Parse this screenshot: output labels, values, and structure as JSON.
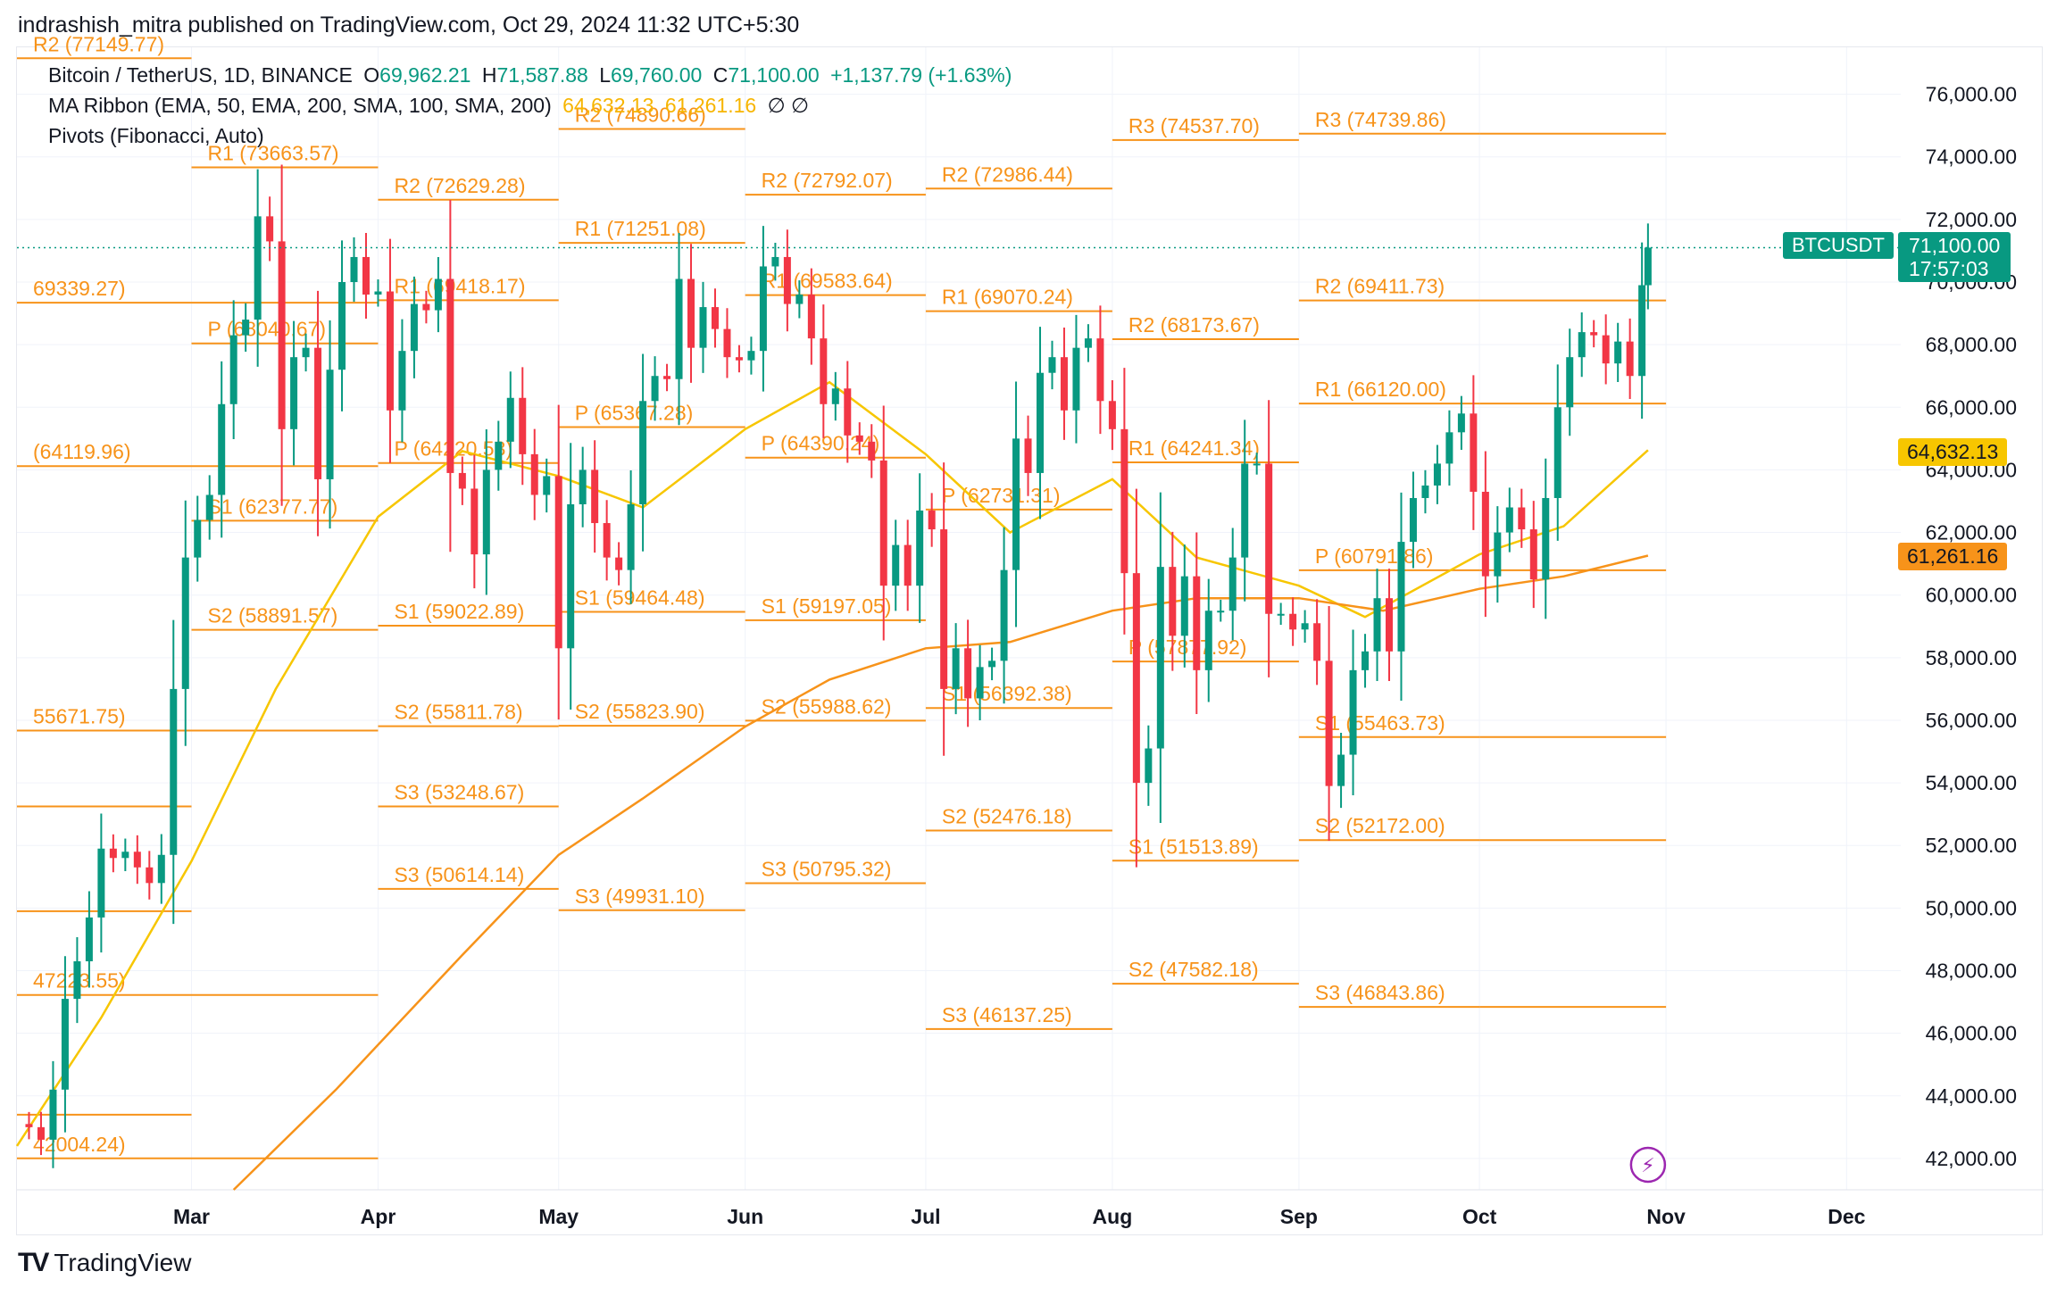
{
  "header": {
    "published": "indrashish_mitra published on TradingView.com, Oct 29, 2024 11:32 UTC+5:30"
  },
  "legend": {
    "symbol": "Bitcoin / TetherUS, 1D, BINANCE",
    "o_label": "O",
    "o_value": "69,962.21",
    "h_label": "H",
    "h_value": "71,587.88",
    "l_label": "L",
    "l_value": "69,760.00",
    "c_label": "C",
    "c_value": "71,100.00",
    "change": "+1,137.79 (+1.63%)",
    "ma_title": "MA Ribbon (EMA, 50, EMA, 200, SMA, 100, SMA, 200)",
    "ma_val1": "64,632.13",
    "ma_val2": "61,261.16",
    "ma_empty": "∅ ∅",
    "pivots_title": "Pivots (Fibonacci, Auto)"
  },
  "footer": {
    "brand": "TradingView",
    "logo": "TV"
  },
  "colors": {
    "up": "#089981",
    "down": "#f23645",
    "pivot": "#f7931a",
    "ema50": "#f7c600",
    "ema200": "#f7931a",
    "grid": "#f0f3fa",
    "tag": "#089981"
  },
  "price_tags": {
    "symbol": "BTCUSDT",
    "last": "71,100.00",
    "countdown": "17:57:03",
    "ema50": "64,632.13",
    "ema200": "61,261.16"
  },
  "chart_data": {
    "type": "candlestick",
    "x_range": [
      "2024-02-01",
      "2024-12-10"
    ],
    "ylim": [
      41000,
      77500
    ],
    "y_ticks": [
      42000,
      44000,
      46000,
      48000,
      50000,
      52000,
      54000,
      56000,
      58000,
      60000,
      62000,
      64000,
      66000,
      68000,
      70000,
      72000,
      74000,
      76000
    ],
    "y_tick_labels": [
      "42,000.00",
      "44,000.00",
      "46,000.00",
      "48,000.00",
      "50,000.00",
      "52,000.00",
      "54,000.00",
      "56,000.00",
      "58,000.00",
      "60,000.00",
      "62,000.00",
      "64,000.00",
      "66,000.00",
      "68,000.00",
      "70,000.00",
      "72,000.00",
      "74,000.00",
      "76,000.00"
    ],
    "x_ticks": [
      {
        "date": "2024-03-01",
        "label": "Mar"
      },
      {
        "date": "2024-04-01",
        "label": "Apr"
      },
      {
        "date": "2024-05-01",
        "label": "May"
      },
      {
        "date": "2024-06-01",
        "label": "Jun"
      },
      {
        "date": "2024-07-01",
        "label": "Jul"
      },
      {
        "date": "2024-08-01",
        "label": "Aug"
      },
      {
        "date": "2024-09-01",
        "label": "Sep"
      },
      {
        "date": "2024-10-01",
        "label": "Oct"
      },
      {
        "date": "2024-11-01",
        "label": "Nov"
      },
      {
        "date": "2024-12-01",
        "label": "Dec"
      }
    ],
    "last_price": 71100,
    "closes": [
      [
        "2024-02-01",
        43100
      ],
      [
        "2024-02-03",
        43000
      ],
      [
        "2024-02-05",
        42600
      ],
      [
        "2024-02-07",
        44200
      ],
      [
        "2024-02-09",
        47100
      ],
      [
        "2024-02-11",
        48300
      ],
      [
        "2024-02-13",
        49700
      ],
      [
        "2024-02-15",
        51900
      ],
      [
        "2024-02-17",
        51600
      ],
      [
        "2024-02-19",
        51800
      ],
      [
        "2024-02-21",
        51300
      ],
      [
        "2024-02-23",
        50800
      ],
      [
        "2024-02-25",
        51700
      ],
      [
        "2024-02-27",
        57000
      ],
      [
        "2024-02-29",
        61200
      ],
      [
        "2024-03-02",
        62400
      ],
      [
        "2024-03-04",
        63200
      ],
      [
        "2024-03-06",
        66100
      ],
      [
        "2024-03-08",
        68300
      ],
      [
        "2024-03-10",
        68800
      ],
      [
        "2024-03-12",
        72100
      ],
      [
        "2024-03-14",
        71300
      ],
      [
        "2024-03-16",
        65300
      ],
      [
        "2024-03-18",
        67600
      ],
      [
        "2024-03-20",
        67900
      ],
      [
        "2024-03-22",
        63700
      ],
      [
        "2024-03-24",
        67200
      ],
      [
        "2024-03-26",
        70000
      ],
      [
        "2024-03-28",
        70800
      ],
      [
        "2024-03-30",
        69600
      ],
      [
        "2024-04-01",
        69700
      ],
      [
        "2024-04-03",
        65900
      ],
      [
        "2024-04-05",
        67800
      ],
      [
        "2024-04-07",
        69300
      ],
      [
        "2024-04-09",
        69100
      ],
      [
        "2024-04-11",
        70100
      ],
      [
        "2024-04-13",
        63900
      ],
      [
        "2024-04-15",
        63400
      ],
      [
        "2024-04-17",
        61300
      ],
      [
        "2024-04-19",
        64000
      ],
      [
        "2024-04-21",
        64900
      ],
      [
        "2024-04-23",
        66300
      ],
      [
        "2024-04-25",
        64500
      ],
      [
        "2024-04-27",
        63200
      ],
      [
        "2024-04-29",
        63800
      ],
      [
        "2024-05-01",
        58300
      ],
      [
        "2024-05-03",
        62900
      ],
      [
        "2024-05-05",
        64000
      ],
      [
        "2024-05-07",
        62300
      ],
      [
        "2024-05-09",
        61200
      ],
      [
        "2024-05-11",
        60800
      ],
      [
        "2024-05-13",
        62900
      ],
      [
        "2024-05-15",
        66200
      ],
      [
        "2024-05-17",
        67000
      ],
      [
        "2024-05-19",
        66900
      ],
      [
        "2024-05-21",
        70100
      ],
      [
        "2024-05-23",
        67900
      ],
      [
        "2024-05-25",
        69200
      ],
      [
        "2024-05-27",
        68500
      ],
      [
        "2024-05-29",
        67600
      ],
      [
        "2024-05-31",
        67500
      ],
      [
        "2024-06-02",
        67800
      ],
      [
        "2024-06-04",
        70500
      ],
      [
        "2024-06-06",
        70800
      ],
      [
        "2024-06-08",
        69300
      ],
      [
        "2024-06-10",
        69600
      ],
      [
        "2024-06-12",
        68200
      ],
      [
        "2024-06-14",
        66100
      ],
      [
        "2024-06-16",
        66600
      ],
      [
        "2024-06-18",
        65100
      ],
      [
        "2024-06-20",
        64900
      ],
      [
        "2024-06-22",
        64300
      ],
      [
        "2024-06-24",
        60300
      ],
      [
        "2024-06-26",
        61600
      ],
      [
        "2024-06-28",
        60300
      ],
      [
        "2024-06-30",
        62700
      ],
      [
        "2024-07-02",
        62100
      ],
      [
        "2024-07-04",
        57000
      ],
      [
        "2024-07-06",
        58300
      ],
      [
        "2024-07-08",
        56700
      ],
      [
        "2024-07-10",
        57700
      ],
      [
        "2024-07-12",
        57900
      ],
      [
        "2024-07-14",
        60800
      ],
      [
        "2024-07-16",
        65000
      ],
      [
        "2024-07-18",
        63900
      ],
      [
        "2024-07-20",
        67100
      ],
      [
        "2024-07-22",
        67600
      ],
      [
        "2024-07-24",
        65900
      ],
      [
        "2024-07-26",
        67900
      ],
      [
        "2024-07-28",
        68200
      ],
      [
        "2024-07-30",
        66200
      ],
      [
        "2024-08-01",
        65300
      ],
      [
        "2024-08-03",
        60700
      ],
      [
        "2024-08-05",
        54000
      ],
      [
        "2024-08-07",
        55100
      ],
      [
        "2024-08-09",
        60900
      ],
      [
        "2024-08-11",
        58700
      ],
      [
        "2024-08-13",
        60600
      ],
      [
        "2024-08-15",
        57600
      ],
      [
        "2024-08-17",
        59500
      ],
      [
        "2024-08-19",
        59500
      ],
      [
        "2024-08-21",
        61200
      ],
      [
        "2024-08-23",
        64200
      ],
      [
        "2024-08-25",
        64200
      ],
      [
        "2024-08-27",
        59400
      ],
      [
        "2024-08-29",
        59400
      ],
      [
        "2024-08-31",
        58900
      ],
      [
        "2024-09-02",
        59100
      ],
      [
        "2024-09-04",
        57900
      ],
      [
        "2024-09-06",
        53900
      ],
      [
        "2024-09-08",
        54900
      ],
      [
        "2024-09-10",
        57600
      ],
      [
        "2024-09-12",
        58200
      ],
      [
        "2024-09-14",
        59900
      ],
      [
        "2024-09-16",
        58200
      ],
      [
        "2024-09-18",
        61700
      ],
      [
        "2024-09-20",
        63100
      ],
      [
        "2024-09-22",
        63500
      ],
      [
        "2024-09-24",
        64200
      ],
      [
        "2024-09-26",
        65200
      ],
      [
        "2024-09-28",
        65800
      ],
      [
        "2024-09-30",
        63300
      ],
      [
        "2024-10-02",
        60600
      ],
      [
        "2024-10-04",
        62000
      ],
      [
        "2024-10-06",
        62800
      ],
      [
        "2024-10-08",
        62100
      ],
      [
        "2024-10-10",
        60500
      ],
      [
        "2024-10-12",
        63100
      ],
      [
        "2024-10-14",
        66000
      ],
      [
        "2024-10-16",
        67600
      ],
      [
        "2024-10-18",
        68400
      ],
      [
        "2024-10-20",
        68300
      ],
      [
        "2024-10-22",
        67400
      ],
      [
        "2024-10-24",
        68100
      ],
      [
        "2024-10-26",
        67000
      ],
      [
        "2024-10-28",
        69900
      ],
      [
        "2024-10-29",
        71100
      ]
    ],
    "ema50": [
      [
        "2024-02-01",
        42400
      ],
      [
        "2024-02-15",
        46500
      ],
      [
        "2024-03-01",
        51500
      ],
      [
        "2024-03-15",
        57000
      ],
      [
        "2024-04-01",
        62500
      ],
      [
        "2024-04-15",
        64600
      ],
      [
        "2024-05-01",
        63800
      ],
      [
        "2024-05-15",
        62800
      ],
      [
        "2024-06-01",
        65300
      ],
      [
        "2024-06-15",
        66800
      ],
      [
        "2024-07-01",
        64500
      ],
      [
        "2024-07-15",
        62000
      ],
      [
        "2024-08-01",
        63700
      ],
      [
        "2024-08-15",
        61200
      ],
      [
        "2024-09-01",
        60300
      ],
      [
        "2024-09-12",
        59300
      ],
      [
        "2024-10-01",
        61300
      ],
      [
        "2024-10-15",
        62200
      ],
      [
        "2024-10-29",
        64632
      ]
    ],
    "ema200": [
      [
        "2024-03-08",
        41000
      ],
      [
        "2024-03-25",
        44200
      ],
      [
        "2024-04-15",
        48500
      ],
      [
        "2024-05-01",
        51700
      ],
      [
        "2024-05-15",
        53500
      ],
      [
        "2024-06-01",
        55800
      ],
      [
        "2024-06-15",
        57300
      ],
      [
        "2024-07-01",
        58300
      ],
      [
        "2024-07-15",
        58500
      ],
      [
        "2024-08-01",
        59500
      ],
      [
        "2024-08-15",
        59900
      ],
      [
        "2024-09-01",
        59900
      ],
      [
        "2024-09-15",
        59500
      ],
      [
        "2024-10-01",
        60200
      ],
      [
        "2024-10-15",
        60600
      ],
      [
        "2024-10-29",
        61261
      ]
    ],
    "pivot_periods": [
      {
        "start": "2024-02-01",
        "end": "2024-03-01",
        "levels": [
          [
            "R2",
            77149.77
          ],
          [
            "",
            "69339.27"
          ],
          [
            "",
            "64119.96"
          ],
          [
            "",
            "55671.75"
          ],
          [
            "",
            "53248.67"
          ],
          [
            "",
            "49900"
          ],
          [
            "",
            "47223.55"
          ],
          [
            "",
            "43400"
          ],
          [
            "",
            "42004.24"
          ]
        ]
      }
    ],
    "pivot_levels": [
      {
        "start": "2024-02-01",
        "end": "2024-03-01",
        "lines": [
          {
            "label": "R2 (77149.77)",
            "value": 77149.77
          },
          {
            "label": "69339.27)",
            "value": 69339.27
          },
          {
            "label": "(64119.96)",
            "value": 64119.96
          },
          {
            "label": "55671.75)",
            "value": 55671.75
          },
          {
            "label": "",
            "value": 53248.67
          },
          {
            "label": "",
            "value": 49900
          },
          {
            "label": "47223.55)",
            "value": 47223.55
          },
          {
            "label": "",
            "value": 43400
          },
          {
            "label": "42004.24)",
            "value": 42004.24
          }
        ]
      },
      {
        "start": "2024-03-01",
        "end": "2024-04-01",
        "lines": [
          {
            "label": "R1 (73663.57)",
            "value": 73663.57
          },
          {
            "label": "",
            "value": 69339.27
          },
          {
            "label": "P (68040.67)",
            "value": 68040.67
          },
          {
            "label": "",
            "value": 64119.96
          },
          {
            "label": "S1 (62377.77)",
            "value": 62377.77
          },
          {
            "label": "S2 (58891.57)",
            "value": 58891.57
          },
          {
            "label": "",
            "value": 55671.75
          },
          {
            "label": "",
            "value": 47223.55
          },
          {
            "label": "",
            "value": 42004.24
          }
        ]
      },
      {
        "start": "2024-04-01",
        "end": "2024-05-01",
        "lines": [
          {
            "label": "R2 (72629.28)",
            "value": 72629.28
          },
          {
            "label": "R1 (69418.17)",
            "value": 69418.17
          },
          {
            "label": "P (64220.53)",
            "value": 64220.53
          },
          {
            "label": "S1 (59022.89)",
            "value": 59022.89
          },
          {
            "label": "S2 (55811.78)",
            "value": 55811.78
          },
          {
            "label": "S3 (53248.67)",
            "value": 53248.67
          },
          {
            "label": "S3 (50614.14)",
            "value": 50614.14
          }
        ]
      },
      {
        "start": "2024-05-01",
        "end": "2024-06-01",
        "lines": [
          {
            "label": "R2 (74890.66)",
            "value": 74890.66
          },
          {
            "label": "R1 (71251.08)",
            "value": 71251.08
          },
          {
            "label": "P (65367.28)",
            "value": 65367.28
          },
          {
            "label": "S1 (59464.48)",
            "value": 59464.48
          },
          {
            "label": "S2 (55823.90)",
            "value": 55823.9
          },
          {
            "label": "S3 (49931.10)",
            "value": 49931.1
          }
        ]
      },
      {
        "start": "2024-06-01",
        "end": "2024-07-01",
        "lines": [
          {
            "label": "R2 (72792.07)",
            "value": 72792.07
          },
          {
            "label": "R1 (69583.64)",
            "value": 69583.64
          },
          {
            "label": "P (64390.24)",
            "value": 64390.24
          },
          {
            "label": "S1 (59197.05)",
            "value": 59197.05
          },
          {
            "label": "S2 (55988.62)",
            "value": 55988.62
          },
          {
            "label": "S3 (50795.32)",
            "value": 50795.32
          }
        ]
      },
      {
        "start": "2024-07-01",
        "end": "2024-08-01",
        "lines": [
          {
            "label": "R2 (72986.44)",
            "value": 72986.44
          },
          {
            "label": "R1 (69070.24)",
            "value": 69070.24
          },
          {
            "label": "P (62731.31)",
            "value": 62731.31
          },
          {
            "label": "S1 (56392.38)",
            "value": 56392.38
          },
          {
            "label": "S2 (52476.18)",
            "value": 52476.18
          },
          {
            "label": "S3 (46137.25)",
            "value": 46137.25
          }
        ]
      },
      {
        "start": "2024-08-01",
        "end": "2024-09-01",
        "lines": [
          {
            "label": "R3 (74537.70)",
            "value": 74537.7
          },
          {
            "label": "R2 (68173.67)",
            "value": 68173.67
          },
          {
            "label": "R1 (64241.34)",
            "value": 64241.34
          },
          {
            "label": "P (57877.92)",
            "value": 57877.92
          },
          {
            "label": "S1 (51513.89)",
            "value": 51513.89
          },
          {
            "label": "S2 (47582.18)",
            "value": 47582.18
          }
        ]
      },
      {
        "start": "2024-09-01",
        "end": "2024-10-01",
        "lines": [
          {
            "label": "R3 (74739.86)",
            "value": 74739.86
          },
          {
            "label": "R2 (69411.73)",
            "value": 69411.73
          },
          {
            "label": "R1 (66120.00)",
            "value": 66120.0
          },
          {
            "label": "P (60791.86)",
            "value": 60791.86
          },
          {
            "label": "S1 (55463.73)",
            "value": 55463.73
          },
          {
            "label": "S2 (52172.00)",
            "value": 52172.0
          },
          {
            "label": "S3 (46843.86)",
            "value": 46843.86
          }
        ]
      },
      {
        "start": "2024-10-01",
        "end": "2024-11-01",
        "lines": [
          {
            "label": "",
            "value": 74739.86
          },
          {
            "label": "",
            "value": 69411.73
          },
          {
            "label": "",
            "value": 66120.0
          },
          {
            "label": "",
            "value": 60791.86
          },
          {
            "label": "",
            "value": 55463.73
          },
          {
            "label": "",
            "value": 52172.0
          },
          {
            "label": "",
            "value": 46843.86
          }
        ]
      }
    ]
  }
}
